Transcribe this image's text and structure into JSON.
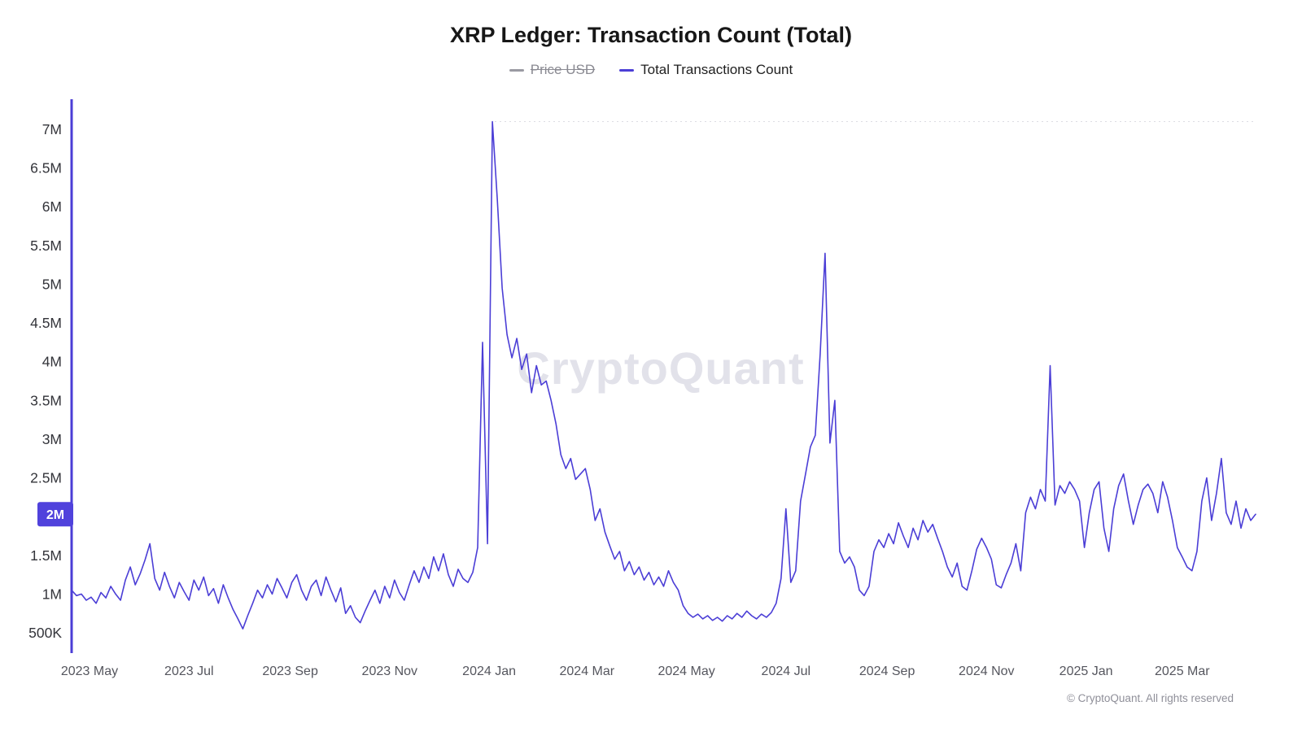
{
  "title": "XRP Ledger: Transaction Count (Total)",
  "legend": {
    "price_usd": {
      "label": "Price USD",
      "color": "#9a9aa2",
      "disabled": true
    },
    "total_tx": {
      "label": "Total Transactions Count",
      "color": "#4b3ed6",
      "disabled": false
    }
  },
  "watermark": "CryptoQuant",
  "footer": "© CryptoQuant. All rights reserved",
  "current_value_badge": "2M",
  "colors": {
    "line": "#4b3ed6",
    "axis": "#4b3ed6",
    "badge": "#5042dc",
    "tick_text": "#33343a",
    "xlabel_text": "#55565e",
    "watermark": "#e2e2ea",
    "ath_guide": "#dcdce2"
  },
  "chart_data": {
    "type": "line",
    "title": "XRP Ledger: Transaction Count (Total)",
    "legend_entries": [
      "Price USD",
      "Total Transactions Count"
    ],
    "grid": false,
    "legend_position": "top-center",
    "y_ticks": [
      "500K",
      "1M",
      "1.5M",
      "2M",
      "2.5M",
      "3M",
      "3.5M",
      "4M",
      "4.5M",
      "5M",
      "5.5M",
      "6M",
      "6.5M",
      "7M"
    ],
    "y_tick_values_m": [
      0.5,
      1,
      1.5,
      2,
      2.5,
      3,
      3.5,
      4,
      4.5,
      5,
      5.5,
      6,
      6.5,
      7
    ],
    "x_ticks": [
      {
        "label": "2023 May",
        "day": 11
      },
      {
        "label": "2023 Jul",
        "day": 72
      },
      {
        "label": "2023 Sep",
        "day": 134
      },
      {
        "label": "2023 Nov",
        "day": 195
      },
      {
        "label": "2024 Jan",
        "day": 256
      },
      {
        "label": "2024 Mar",
        "day": 316
      },
      {
        "label": "2024 May",
        "day": 377
      },
      {
        "label": "2024 Jul",
        "day": 438
      },
      {
        "label": "2024 Sep",
        "day": 500
      },
      {
        "label": "2024 Nov",
        "day": 561
      },
      {
        "label": "2025 Jan",
        "day": 622
      },
      {
        "label": "2025 Mar",
        "day": 681
      }
    ],
    "x_range_days": [
      0,
      726
    ],
    "step_days": 3,
    "peak_value_m": 7.1,
    "latest_value_m": 2.03,
    "series": [
      {
        "name": "Total Transactions Count",
        "color": "#4b3ed6",
        "unit": "millions of transactions",
        "values_m": [
          1.05,
          0.98,
          1.0,
          0.92,
          0.96,
          0.88,
          1.02,
          0.95,
          1.1,
          1.0,
          0.92,
          1.18,
          1.35,
          1.12,
          1.26,
          1.44,
          1.65,
          1.2,
          1.05,
          1.28,
          1.1,
          0.95,
          1.15,
          1.03,
          0.92,
          1.18,
          1.05,
          1.22,
          0.98,
          1.07,
          0.88,
          1.12,
          0.95,
          0.8,
          0.68,
          0.55,
          0.72,
          0.88,
          1.05,
          0.95,
          1.12,
          1.0,
          1.2,
          1.08,
          0.95,
          1.15,
          1.25,
          1.05,
          0.92,
          1.1,
          1.18,
          0.98,
          1.22,
          1.05,
          0.9,
          1.08,
          0.75,
          0.85,
          0.7,
          0.63,
          0.78,
          0.92,
          1.05,
          0.88,
          1.1,
          0.95,
          1.18,
          1.02,
          0.92,
          1.12,
          1.3,
          1.15,
          1.35,
          1.2,
          1.48,
          1.3,
          1.52,
          1.25,
          1.1,
          1.32,
          1.2,
          1.15,
          1.28,
          1.6,
          4.25,
          1.65,
          7.1,
          6.1,
          4.95,
          4.35,
          4.05,
          4.3,
          3.9,
          4.1,
          3.6,
          3.95,
          3.7,
          3.75,
          3.5,
          3.2,
          2.8,
          2.62,
          2.75,
          2.48,
          2.55,
          2.62,
          2.35,
          1.95,
          2.1,
          1.8,
          1.62,
          1.45,
          1.55,
          1.3,
          1.42,
          1.25,
          1.35,
          1.18,
          1.28,
          1.12,
          1.22,
          1.1,
          1.3,
          1.15,
          1.05,
          0.85,
          0.75,
          0.7,
          0.74,
          0.68,
          0.72,
          0.66,
          0.7,
          0.65,
          0.72,
          0.68,
          0.75,
          0.7,
          0.78,
          0.72,
          0.68,
          0.74,
          0.7,
          0.76,
          0.88,
          1.2,
          2.1,
          1.15,
          1.3,
          2.2,
          2.55,
          2.9,
          3.05,
          4.1,
          5.4,
          2.95,
          3.5,
          1.55,
          1.4,
          1.48,
          1.35,
          1.05,
          0.98,
          1.1,
          1.55,
          1.7,
          1.6,
          1.78,
          1.65,
          1.92,
          1.75,
          1.6,
          1.85,
          1.7,
          1.95,
          1.8,
          1.9,
          1.72,
          1.55,
          1.35,
          1.22,
          1.4,
          1.1,
          1.05,
          1.3,
          1.58,
          1.72,
          1.6,
          1.45,
          1.12,
          1.08,
          1.25,
          1.4,
          1.65,
          1.3,
          2.05,
          2.25,
          2.1,
          2.35,
          2.2,
          3.95,
          2.15,
          2.4,
          2.3,
          2.45,
          2.35,
          2.2,
          1.6,
          2.05,
          2.35,
          2.45,
          1.85,
          1.55,
          2.1,
          2.4,
          2.55,
          2.2,
          1.9,
          2.15,
          2.35,
          2.42,
          2.3,
          2.05,
          2.45,
          2.25,
          1.95,
          1.6,
          1.48,
          1.35,
          1.3,
          1.55,
          2.2,
          2.5,
          1.95,
          2.3,
          2.75,
          2.05,
          1.9,
          2.2,
          1.85,
          2.1,
          1.95,
          2.03
        ]
      },
      {
        "name": "Price USD",
        "visible": false,
        "values_m": []
      }
    ]
  }
}
